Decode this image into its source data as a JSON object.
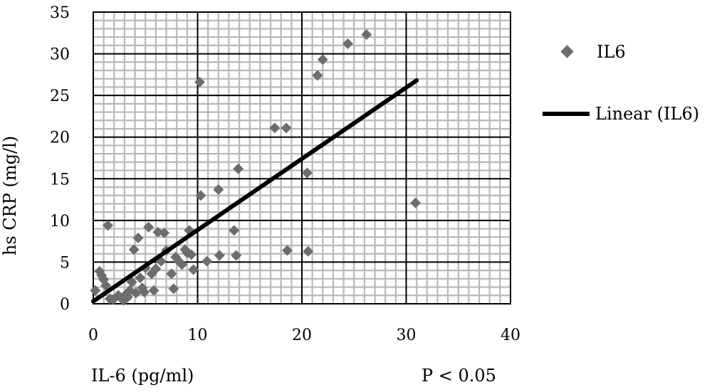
{
  "chart_data": {
    "type": "scatter",
    "title": "",
    "xlabel": "IL-6 (pg/ml)",
    "ylabel": "hs CRP (mg/l)",
    "annotation": "P < 0.05",
    "xlim": [
      0,
      40
    ],
    "ylim": [
      0,
      35
    ],
    "x_ticks": [
      "0",
      "10",
      "20",
      "30",
      "40"
    ],
    "y_ticks": [
      "0",
      "5",
      "10",
      "15",
      "20",
      "25",
      "30",
      "35"
    ],
    "grid": "on",
    "legend_position": "right",
    "series": [
      {
        "name": "IL6",
        "color": "#6d6d6d",
        "marker": "diamond",
        "points": [
          [
            0.2,
            1.6
          ],
          [
            0.6,
            3.9
          ],
          [
            0.8,
            3.4
          ],
          [
            1.0,
            2.9
          ],
          [
            1.2,
            2.2
          ],
          [
            1.4,
            9.4
          ],
          [
            1.6,
            0.6
          ],
          [
            1.9,
            0.5
          ],
          [
            2.4,
            1.0
          ],
          [
            2.9,
            0.4
          ],
          [
            3.1,
            1.1
          ],
          [
            3.3,
            0.8
          ],
          [
            3.5,
            1.6
          ],
          [
            3.7,
            2.6
          ],
          [
            3.9,
            6.5
          ],
          [
            4.1,
            1.3
          ],
          [
            4.3,
            7.9
          ],
          [
            4.5,
            3.1
          ],
          [
            4.7,
            1.9
          ],
          [
            4.9,
            1.4
          ],
          [
            5.0,
            4.3
          ],
          [
            5.3,
            9.2
          ],
          [
            5.6,
            3.6
          ],
          [
            5.8,
            1.6
          ],
          [
            6.0,
            4.2
          ],
          [
            6.2,
            8.6
          ],
          [
            6.5,
            5.1
          ],
          [
            6.8,
            8.5
          ],
          [
            7.0,
            6.4
          ],
          [
            7.5,
            3.6
          ],
          [
            7.7,
            1.8
          ],
          [
            7.9,
            5.6
          ],
          [
            8.2,
            5.1
          ],
          [
            8.5,
            4.7
          ],
          [
            8.8,
            6.5
          ],
          [
            9.0,
            6.1
          ],
          [
            9.2,
            8.8
          ],
          [
            9.4,
            5.9
          ],
          [
            9.6,
            4.1
          ],
          [
            10.2,
            26.6
          ],
          [
            10.3,
            13.0
          ],
          [
            10.9,
            5.1
          ],
          [
            12.0,
            13.7
          ],
          [
            12.1,
            5.8
          ],
          [
            13.5,
            8.8
          ],
          [
            13.7,
            5.8
          ],
          [
            13.9,
            16.2
          ],
          [
            17.4,
            21.1
          ],
          [
            18.5,
            21.1
          ],
          [
            18.6,
            6.4
          ],
          [
            20.5,
            15.7
          ],
          [
            20.6,
            6.3
          ],
          [
            21.5,
            27.4
          ],
          [
            22.0,
            29.3
          ],
          [
            24.4,
            31.2
          ],
          [
            26.2,
            32.3
          ],
          [
            30.9,
            12.1
          ]
        ]
      },
      {
        "name": "Linear (IL6)",
        "color": "#000000",
        "type": "line",
        "x": [
          0,
          31
        ],
        "values": [
          0.3,
          26.8
        ]
      }
    ]
  }
}
